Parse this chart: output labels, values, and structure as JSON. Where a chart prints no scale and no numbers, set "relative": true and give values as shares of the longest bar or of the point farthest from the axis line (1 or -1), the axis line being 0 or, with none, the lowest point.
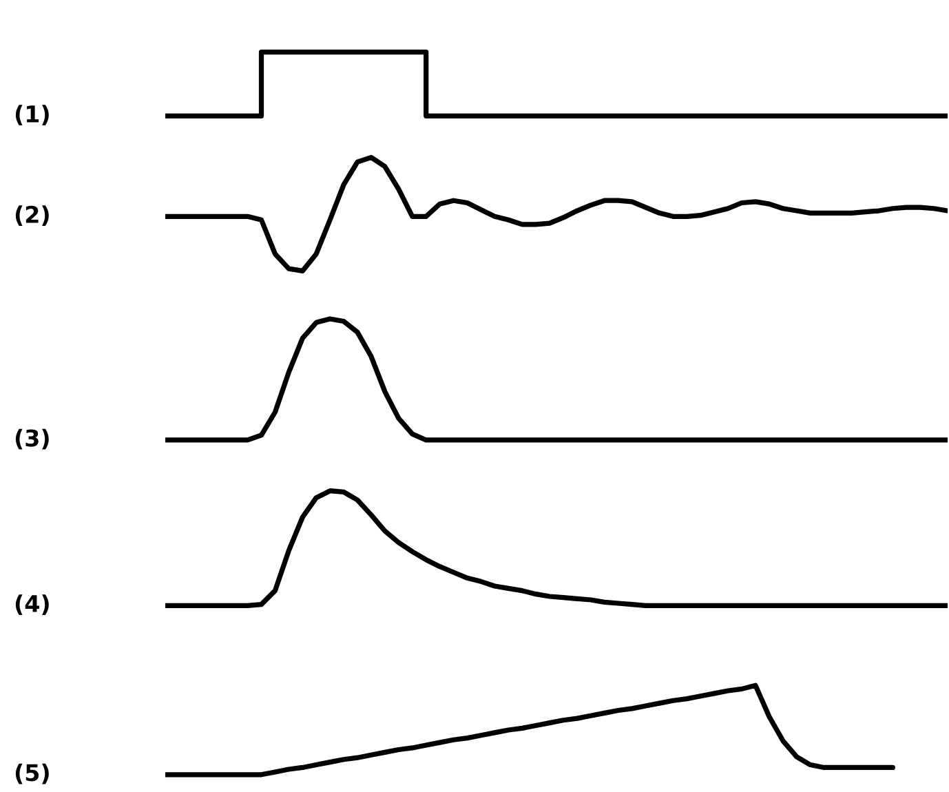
{
  "chart_data": [
    {
      "type": "step",
      "relative": true,
      "categories": [
        null,
        null,
        null,
        null,
        null,
        null,
        null,
        null,
        null,
        null,
        null,
        null,
        null,
        null,
        null,
        null,
        null,
        null,
        null,
        null,
        null,
        null,
        null,
        null,
        null,
        null,
        null,
        null,
        null,
        null,
        null,
        null,
        null,
        null,
        null,
        null,
        null,
        null,
        null,
        null,
        null,
        null,
        null,
        null,
        null,
        null,
        null,
        null,
        null,
        null,
        null,
        null,
        null,
        null,
        null,
        null,
        null,
        null
      ],
      "series": [
        {
          "name": "(1)",
          "color": "#000000",
          "values": [
            0,
            0,
            0,
            0,
            0,
            0,
            0,
            1,
            1,
            1,
            1,
            1,
            1,
            1,
            1,
            1,
            1,
            1,
            1,
            0,
            0,
            0,
            0,
            0,
            0,
            0,
            0,
            0,
            0,
            0,
            0,
            0,
            0,
            0,
            0,
            0,
            0,
            0,
            0,
            0,
            0,
            0,
            0,
            0,
            0,
            0,
            0,
            0,
            0,
            0,
            0,
            0,
            0,
            0,
            0,
            0,
            0,
            0
          ]
        }
      ]
    },
    {
      "type": "line",
      "relative": true,
      "categories": [
        null,
        null,
        null,
        null,
        null,
        null,
        null,
        null,
        null,
        null,
        null,
        null,
        null,
        null,
        null,
        null,
        null,
        null,
        null,
        null,
        null,
        null,
        null,
        null,
        null,
        null,
        null,
        null,
        null,
        null,
        null,
        null,
        null,
        null,
        null,
        null,
        null,
        null,
        null,
        null,
        null,
        null,
        null,
        null,
        null,
        null,
        null,
        null,
        null,
        null,
        null,
        null,
        null,
        null,
        null,
        null,
        null,
        null
      ],
      "series": [
        {
          "name": "(2)",
          "color": "#000000",
          "values": [
            0.48,
            0.48,
            0.48,
            0.48,
            0.48,
            0.48,
            0.48,
            0.45,
            0.15,
            0.02,
            0,
            0.15,
            0.45,
            0.76,
            0.96,
            1.0,
            0.92,
            0.72,
            0.48,
            0.48,
            0.59,
            0.62,
            0.6,
            0.54,
            0.48,
            0.45,
            0.41,
            0.41,
            0.42,
            0.47,
            0.53,
            0.58,
            0.62,
            0.62,
            0.61,
            0.56,
            0.51,
            0.48,
            0.48,
            0.49,
            0.52,
            0.55,
            0.6,
            0.61,
            0.59,
            0.55,
            0.53,
            0.51,
            0.51,
            0.51,
            0.51,
            0.52,
            0.53,
            0.55,
            0.56,
            0.56,
            0.55,
            0.53
          ]
        }
      ]
    },
    {
      "type": "line",
      "relative": true,
      "categories": [
        null,
        null,
        null,
        null,
        null,
        null,
        null,
        null,
        null,
        null,
        null,
        null,
        null,
        null,
        null,
        null,
        null,
        null,
        null,
        null,
        null,
        null,
        null,
        null,
        null,
        null,
        null,
        null,
        null,
        null,
        null,
        null,
        null,
        null,
        null,
        null,
        null,
        null,
        null,
        null,
        null,
        null,
        null,
        null,
        null,
        null,
        null,
        null,
        null,
        null,
        null,
        null,
        null,
        null,
        null,
        null,
        null,
        null
      ],
      "series": [
        {
          "name": "(3)",
          "color": "#000000",
          "values": [
            0,
            0,
            0,
            0,
            0,
            0,
            0,
            0.04,
            0.23,
            0.56,
            0.84,
            0.97,
            1.0,
            0.98,
            0.89,
            0.69,
            0.4,
            0.18,
            0.05,
            0,
            0,
            0,
            0,
            0,
            0,
            0,
            0,
            0,
            0,
            0,
            0,
            0,
            0,
            0,
            0,
            0,
            0,
            0,
            0,
            0,
            0,
            0,
            0,
            0,
            0,
            0,
            0,
            0,
            0,
            0,
            0,
            0,
            0,
            0,
            0,
            0,
            0,
            0
          ]
        }
      ]
    },
    {
      "type": "line",
      "relative": true,
      "categories": [
        null,
        null,
        null,
        null,
        null,
        null,
        null,
        null,
        null,
        null,
        null,
        null,
        null,
        null,
        null,
        null,
        null,
        null,
        null,
        null,
        null,
        null,
        null,
        null,
        null,
        null,
        null,
        null,
        null,
        null,
        null,
        null,
        null,
        null,
        null,
        null,
        null,
        null,
        null,
        null,
        null,
        null,
        null,
        null,
        null,
        null,
        null,
        null,
        null,
        null,
        null,
        null,
        null,
        null,
        null,
        null,
        null,
        null
      ],
      "series": [
        {
          "name": "(4)",
          "color": "#000000",
          "values": [
            0,
            0,
            0,
            0,
            0,
            0,
            0,
            0.01,
            0.13,
            0.48,
            0.77,
            0.94,
            1.0,
            0.99,
            0.92,
            0.79,
            0.65,
            0.55,
            0.47,
            0.4,
            0.34,
            0.29,
            0.24,
            0.21,
            0.17,
            0.15,
            0.13,
            0.1,
            0.08,
            0.07,
            0.06,
            0.05,
            0.03,
            0.02,
            0.01,
            0,
            0,
            0,
            0,
            0,
            0,
            0,
            0,
            0,
            0,
            0,
            0,
            0,
            0,
            0,
            0,
            0,
            0,
            0,
            0,
            0,
            0,
            0
          ]
        }
      ]
    },
    {
      "type": "line",
      "relative": true,
      "categories": [
        null,
        null,
        null,
        null,
        null,
        null,
        null,
        null,
        null,
        null,
        null,
        null,
        null,
        null,
        null,
        null,
        null,
        null,
        null,
        null,
        null,
        null,
        null,
        null,
        null,
        null,
        null,
        null,
        null,
        null,
        null,
        null,
        null,
        null,
        null,
        null,
        null,
        null,
        null,
        null,
        null,
        null,
        null,
        null,
        null,
        null,
        null,
        null,
        null,
        null,
        null,
        null,
        null,
        null
      ],
      "series": [
        {
          "name": "(5)",
          "color": "#000000",
          "values": [
            0,
            0,
            0,
            0,
            0,
            0,
            0,
            0,
            0.03,
            0.06,
            0.08,
            0.11,
            0.14,
            0.17,
            0.19,
            0.22,
            0.25,
            0.28,
            0.3,
            0.33,
            0.36,
            0.39,
            0.41,
            0.44,
            0.47,
            0.5,
            0.52,
            0.55,
            0.58,
            0.61,
            0.63,
            0.66,
            0.69,
            0.72,
            0.74,
            0.77,
            0.8,
            0.83,
            0.85,
            0.88,
            0.91,
            0.94,
            0.96,
            1.0,
            0.65,
            0.38,
            0.2,
            0.11,
            0.08,
            0.08,
            0.08,
            0.08,
            0.08,
            0.08
          ]
        }
      ]
    }
  ]
}
